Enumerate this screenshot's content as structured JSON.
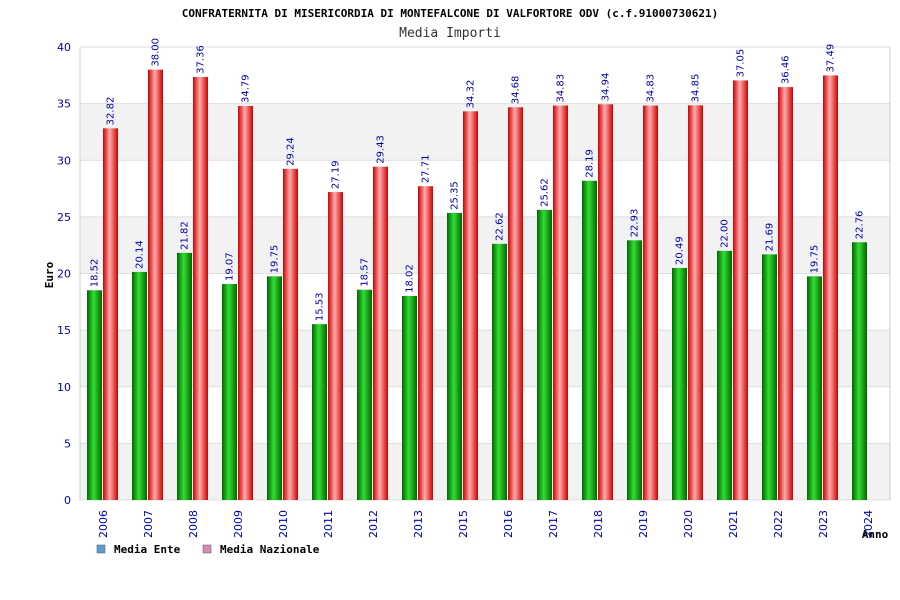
{
  "chart_data": {
    "type": "bar",
    "title": "CONFRATERNITA DI MISERICORDIA DI MONTEFALCONE DI VALFORTORE ODV (c.f.91000730621)",
    "subtitle": "Media Importi",
    "xlabel": "Anno",
    "ylabel": "Euro",
    "ylim": [
      0,
      40
    ],
    "yticks": [
      0,
      5,
      10,
      15,
      20,
      25,
      30,
      35,
      40
    ],
    "categories": [
      "2006",
      "2007",
      "2008",
      "2009",
      "2010",
      "2011",
      "2012",
      "2013",
      "2015",
      "2016",
      "2017",
      "2018",
      "2019",
      "2020",
      "2021",
      "2022",
      "2023",
      "2024"
    ],
    "series": [
      {
        "name": "Media Ente",
        "color": "#00aa00",
        "legend_color": "#5b9bd5",
        "values": [
          18.52,
          20.14,
          21.82,
          19.07,
          19.75,
          15.53,
          18.57,
          18.02,
          25.35,
          22.62,
          25.62,
          28.19,
          22.93,
          20.49,
          22.0,
          21.69,
          19.75,
          22.76
        ],
        "labels": [
          "18.52",
          "20.14",
          "21.82",
          "19.07",
          "19.75",
          "15.53",
          "18.57",
          "18.02",
          "25.35",
          "22.62",
          "25.62",
          "28.19",
          "22.93",
          "20.49",
          "22.00",
          "21.69",
          "19.75",
          "22.76"
        ]
      },
      {
        "name": "Media Nazionale",
        "color": "#ee1111",
        "legend_color": "#d98cb3",
        "values": [
          32.82,
          38.0,
          37.36,
          34.79,
          29.24,
          27.19,
          29.43,
          27.71,
          34.32,
          34.68,
          34.83,
          34.94,
          34.83,
          34.85,
          37.05,
          36.46,
          37.49,
          null
        ],
        "labels": [
          "32.82",
          "38.00",
          "37.36",
          "34.79",
          "29.24",
          "27.19",
          "29.43",
          "27.71",
          "34.32",
          "34.68",
          "34.83",
          "34.94",
          "34.83",
          "34.85",
          "37.05",
          "36.46",
          "37.49",
          ""
        ]
      }
    ],
    "grid": true,
    "legend_position": "bottom-left"
  }
}
